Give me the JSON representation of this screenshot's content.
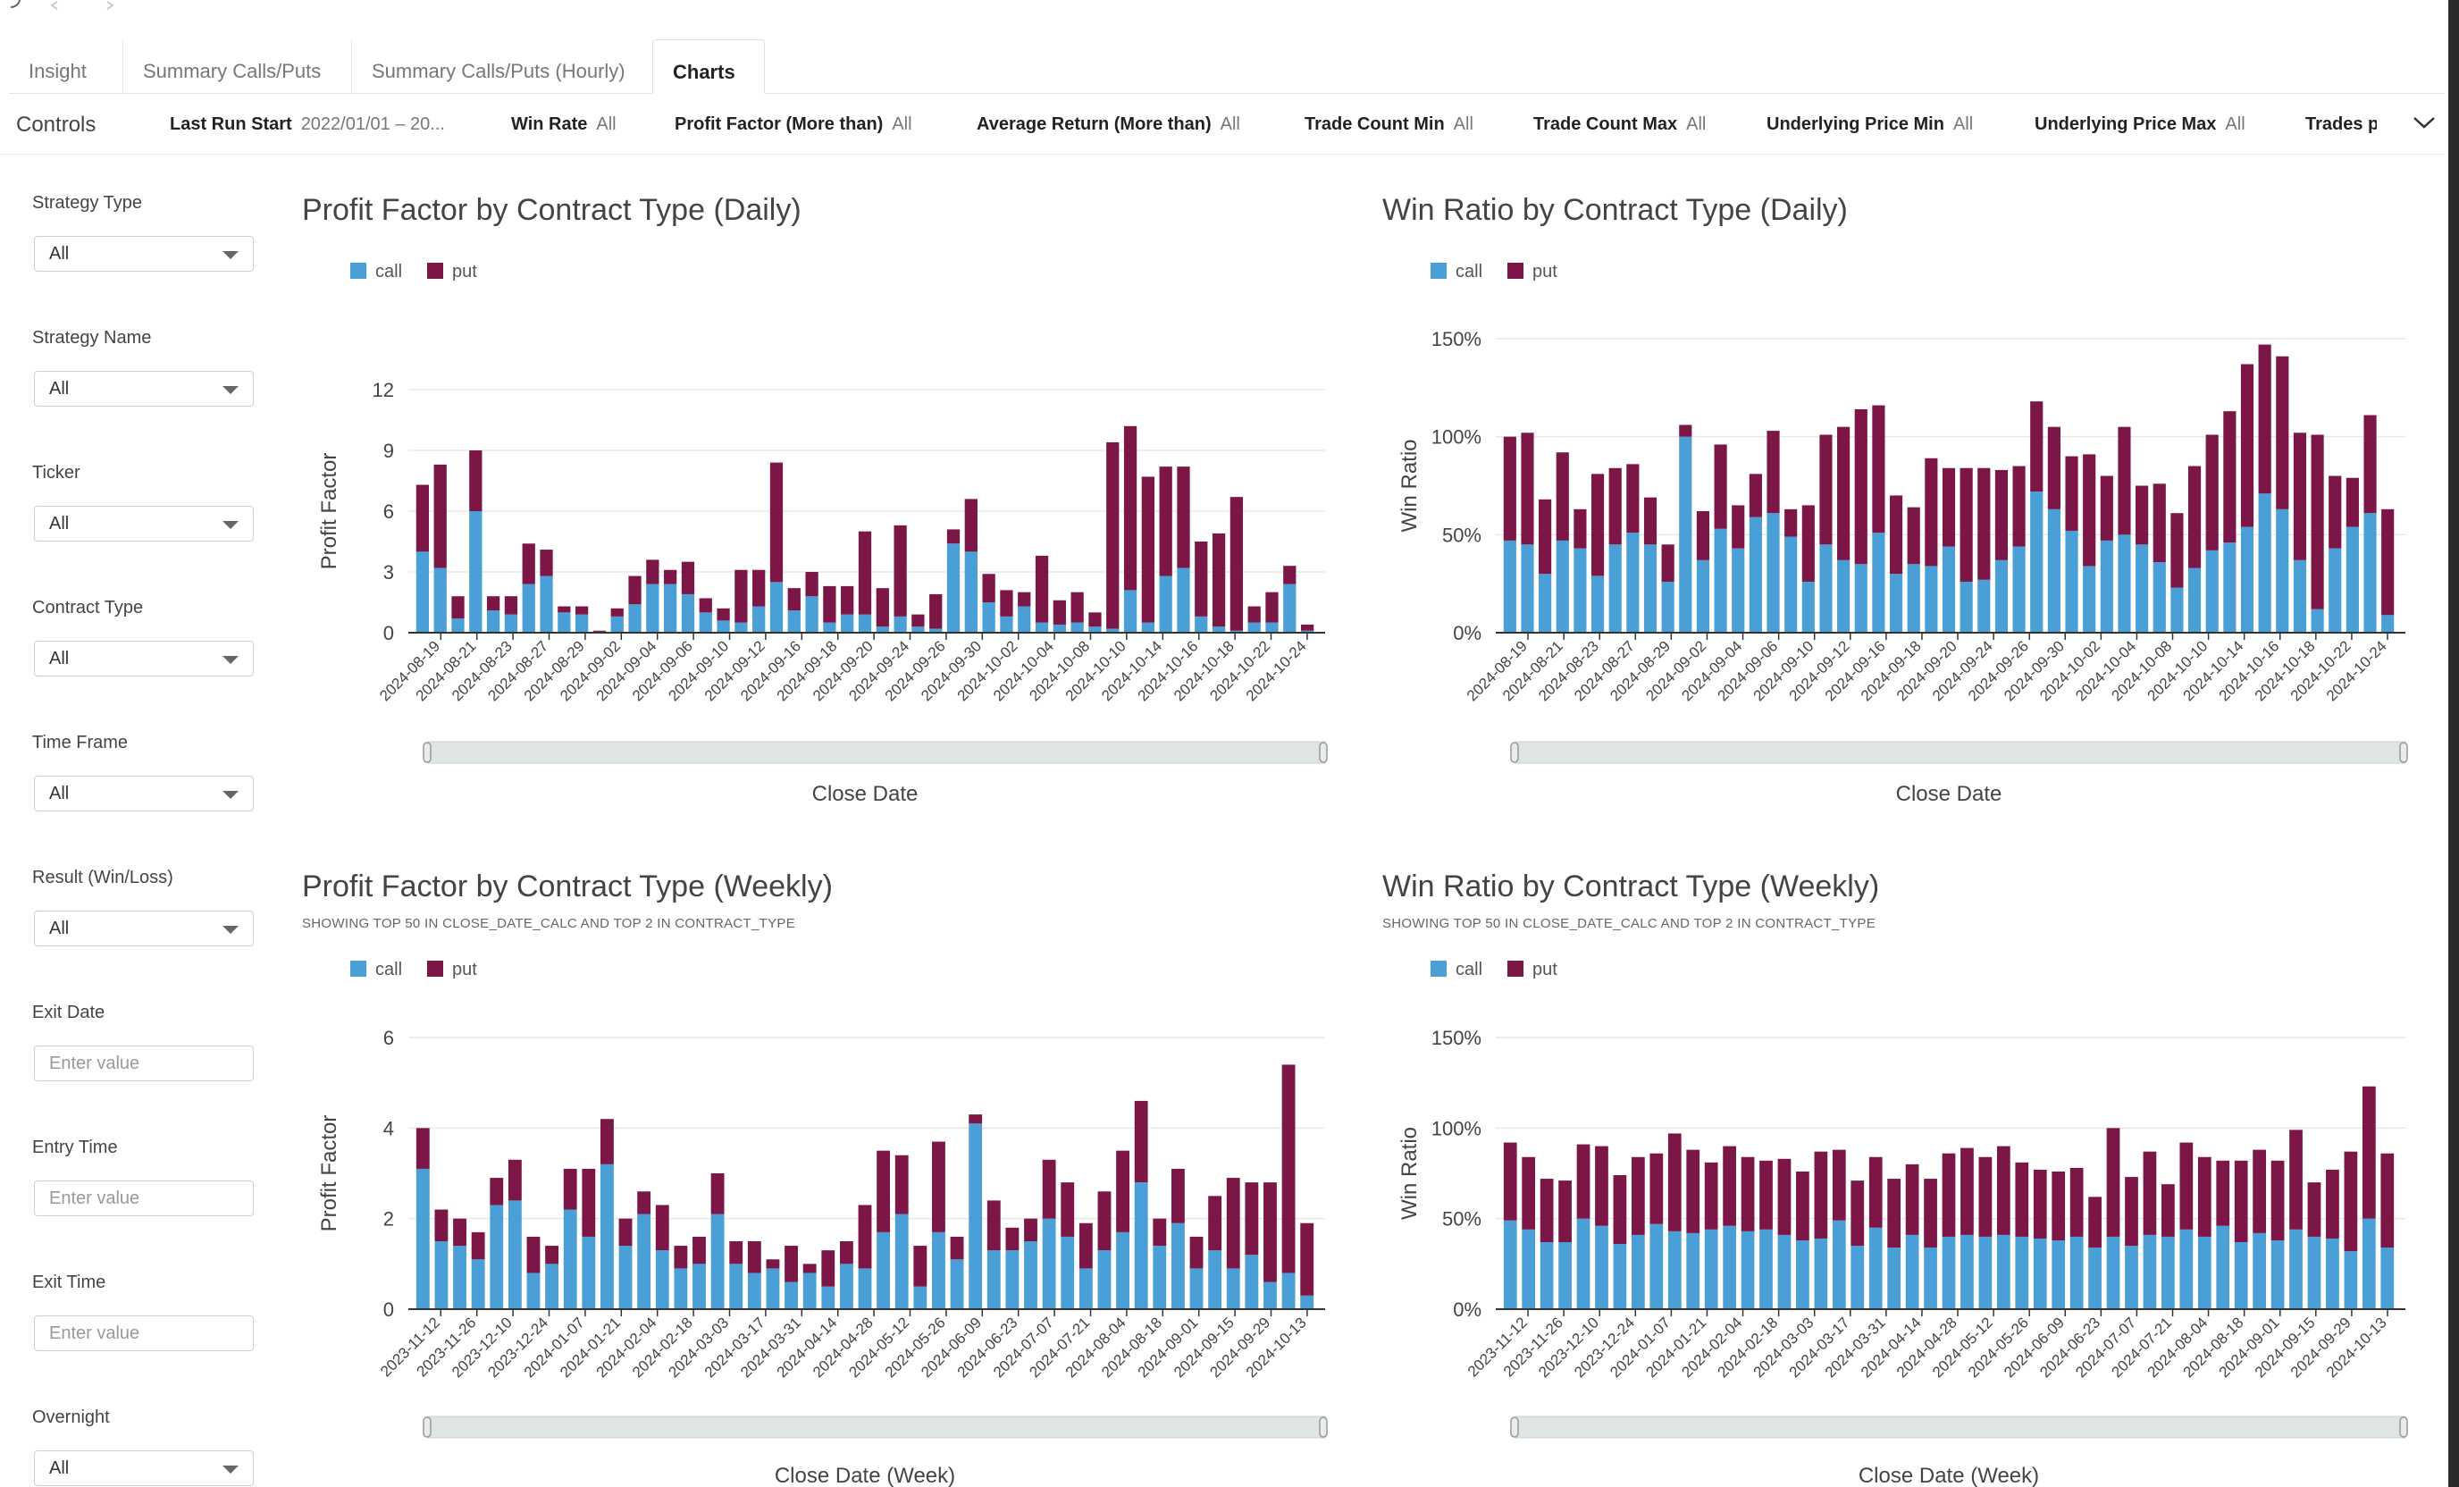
{
  "tabs": [
    {
      "label": "Insight",
      "active": false
    },
    {
      "label": "Summary Calls/Puts",
      "active": false
    },
    {
      "label": "Summary Calls/Puts (Hourly)",
      "active": false
    },
    {
      "label": "Charts",
      "active": true
    }
  ],
  "filter_bar": {
    "controls_label": "Controls",
    "filters": [
      {
        "name": "Last Run Start",
        "value": "2022/01/01 – 20..."
      },
      {
        "name": "Win Rate",
        "value": "All"
      },
      {
        "name": "Profit Factor (More than)",
        "value": "All"
      },
      {
        "name": "Average Return (More than)",
        "value": "All"
      },
      {
        "name": "Trade Count Min",
        "value": "All"
      },
      {
        "name": "Trade Count Max",
        "value": "All"
      },
      {
        "name": "Underlying Price Min",
        "value": "All"
      },
      {
        "name": "Underlying Price Max",
        "value": "All"
      },
      {
        "name": "Trades p",
        "value": ""
      }
    ]
  },
  "sidebar": {
    "fields": [
      {
        "label": "Strategy Type",
        "kind": "select",
        "value": "All"
      },
      {
        "label": "Strategy Name",
        "kind": "select",
        "value": "All"
      },
      {
        "label": "Ticker",
        "kind": "select",
        "value": "All"
      },
      {
        "label": "Contract Type",
        "kind": "select",
        "value": "All"
      },
      {
        "label": "Time Frame",
        "kind": "select",
        "value": "All"
      },
      {
        "label": "Result (Win/Loss)",
        "kind": "select",
        "value": "All"
      },
      {
        "label": "Exit Date",
        "kind": "input",
        "placeholder": "Enter value"
      },
      {
        "label": "Entry Time",
        "kind": "input",
        "placeholder": "Enter value"
      },
      {
        "label": "Exit Time",
        "kind": "input",
        "placeholder": "Enter value"
      },
      {
        "label": "Overnight",
        "kind": "select",
        "value": "All"
      }
    ]
  },
  "colors": {
    "call": "#4a9fd6",
    "put": "#7b1646",
    "grid": "#e8e8e8",
    "axis": "#333333",
    "slider": "#dfe6e2"
  },
  "chart_data": [
    {
      "id": "pf_daily",
      "type": "bar",
      "stacked": true,
      "title": "Profit Factor by Contract Type (Daily)",
      "subtitle": "",
      "xlabel": "Close Date",
      "ylabel": "Profit Factor",
      "ylim": [
        0,
        12
      ],
      "yticks": [
        0,
        3,
        6,
        9,
        12
      ],
      "y_format": "num",
      "legend": [
        "call",
        "put"
      ],
      "tick_labels": [
        "2024-08-19",
        "2024-08-21",
        "2024-08-23",
        "2024-08-27",
        "2024-08-29",
        "2024-09-02",
        "2024-09-04",
        "2024-09-06",
        "2024-09-10",
        "2024-09-12",
        "2024-09-16",
        "2024-09-18",
        "2024-09-20",
        "2024-09-24",
        "2024-09-26",
        "2024-09-30",
        "2024-10-02",
        "2024-10-04",
        "2024-10-08",
        "2024-10-10",
        "2024-10-14",
        "2024-10-16",
        "2024-10-18",
        "2024-10-22",
        "2024-10-24"
      ],
      "series": [
        {
          "name": "call",
          "values": [
            4.0,
            3.2,
            0.7,
            6.0,
            1.1,
            0.9,
            2.4,
            2.8,
            1.0,
            0.9,
            0.05,
            0.8,
            1.4,
            2.4,
            2.4,
            1.9,
            1.0,
            0.6,
            0.5,
            1.3,
            2.5,
            1.1,
            1.8,
            0.5,
            0.9,
            0.9,
            0.3,
            0.8,
            0.3,
            0.2,
            4.4,
            4.0,
            1.5,
            0.8,
            1.3,
            0.5,
            0.4,
            0.5,
            0.3,
            0.2,
            2.1,
            0.5,
            2.8,
            3.2,
            0.8,
            0.3,
            0.1,
            0.5,
            0.5,
            2.4,
            0.1
          ]
        },
        {
          "name": "put",
          "values": [
            3.3,
            5.1,
            1.1,
            3.0,
            0.7,
            0.9,
            2.0,
            1.3,
            0.3,
            0.4,
            0.05,
            0.4,
            1.4,
            1.2,
            0.7,
            1.6,
            0.7,
            0.6,
            2.6,
            1.8,
            5.9,
            1.1,
            1.2,
            1.8,
            1.4,
            4.1,
            1.9,
            4.5,
            0.6,
            1.7,
            0.7,
            2.6,
            1.4,
            1.3,
            0.7,
            3.3,
            1.2,
            1.5,
            0.7,
            9.2,
            8.1,
            7.2,
            5.4,
            5.0,
            3.7,
            4.6,
            6.6,
            0.8,
            1.5,
            0.9,
            0.3
          ]
        }
      ]
    },
    {
      "id": "wr_daily",
      "type": "bar",
      "stacked": true,
      "title": "Win Ratio by Contract Type (Daily)",
      "subtitle": "",
      "xlabel": "Close Date",
      "ylabel": "Win Ratio",
      "ylim": [
        0,
        150
      ],
      "yticks": [
        0,
        50,
        100,
        150
      ],
      "y_format": "pct",
      "legend": [
        "call",
        "put"
      ],
      "tick_labels": [
        "2024-08-19",
        "2024-08-21",
        "2024-08-23",
        "2024-08-27",
        "2024-08-29",
        "2024-09-02",
        "2024-09-04",
        "2024-09-06",
        "2024-09-10",
        "2024-09-12",
        "2024-09-16",
        "2024-09-18",
        "2024-09-20",
        "2024-09-24",
        "2024-09-26",
        "2024-09-30",
        "2024-10-02",
        "2024-10-04",
        "2024-10-08",
        "2024-10-10",
        "2024-10-14",
        "2024-10-16",
        "2024-10-18",
        "2024-10-22",
        "2024-10-24"
      ],
      "series": [
        {
          "name": "call",
          "values": [
            47,
            45,
            30,
            47,
            43,
            29,
            45,
            51,
            45,
            26,
            100,
            37,
            53,
            43,
            59,
            61,
            49,
            26,
            45,
            37,
            35,
            51,
            30,
            35,
            34,
            44,
            26,
            27,
            37,
            44,
            72,
            63,
            52,
            34,
            47,
            50,
            45,
            36,
            23,
            33,
            42,
            46,
            54,
            71,
            63,
            37,
            12,
            43,
            54,
            61,
            9
          ]
        },
        {
          "name": "put",
          "values": [
            53,
            57,
            38,
            45,
            20,
            52,
            39,
            35,
            24,
            19,
            6,
            25,
            43,
            22,
            22,
            42,
            14,
            39,
            56,
            68,
            79,
            65,
            40,
            29,
            55,
            40,
            58,
            57,
            46,
            41,
            46,
            42,
            38,
            57,
            33,
            55,
            30,
            40,
            38,
            52,
            59,
            67,
            83,
            76,
            78,
            65,
            89,
            37,
            25,
            50,
            54
          ]
        }
      ]
    },
    {
      "id": "pf_weekly",
      "type": "bar",
      "stacked": true,
      "title": "Profit Factor by Contract Type (Weekly)",
      "subtitle": "SHOWING TOP 50 IN CLOSE_DATE_CALC AND TOP 2 IN CONTRACT_TYPE",
      "xlabel": "Close Date (Week)",
      "ylabel": "Profit Factor",
      "ylim": [
        0,
        6
      ],
      "yticks": [
        0,
        2,
        4,
        6
      ],
      "y_format": "num",
      "legend": [
        "call",
        "put"
      ],
      "tick_labels": [
        "2023-11-12",
        "2023-11-26",
        "2023-12-10",
        "2023-12-24",
        "2024-01-07",
        "2024-01-21",
        "2024-02-04",
        "2024-02-18",
        "2024-03-03",
        "2024-03-17",
        "2024-03-31",
        "2024-04-14",
        "2024-04-28",
        "2024-05-12",
        "2024-05-26",
        "2024-06-09",
        "2024-06-23",
        "2024-07-07",
        "2024-07-21",
        "2024-08-04",
        "2024-08-18",
        "2024-09-01",
        "2024-09-15",
        "2024-09-29",
        "2024-10-13"
      ],
      "series": [
        {
          "name": "call",
          "values": [
            3.1,
            1.5,
            1.4,
            1.1,
            2.3,
            2.4,
            0.8,
            1.0,
            2.2,
            1.6,
            3.2,
            1.4,
            2.1,
            1.3,
            0.9,
            1.0,
            2.1,
            1.0,
            0.8,
            0.9,
            0.6,
            0.8,
            0.5,
            1.0,
            0.9,
            1.7,
            2.1,
            0.5,
            1.7,
            1.1,
            4.1,
            1.3,
            1.3,
            1.5,
            2.0,
            1.6,
            0.9,
            1.3,
            1.7,
            2.8,
            1.4,
            1.9,
            0.9,
            1.3,
            0.9,
            1.2,
            0.6,
            0.8,
            0.3
          ]
        },
        {
          "name": "put",
          "values": [
            0.9,
            0.7,
            0.6,
            0.6,
            0.6,
            0.9,
            0.8,
            0.4,
            0.9,
            1.5,
            1.0,
            0.6,
            0.5,
            1.0,
            0.5,
            0.6,
            0.9,
            0.5,
            0.7,
            0.2,
            0.8,
            0.2,
            0.8,
            0.5,
            1.4,
            1.8,
            1.3,
            0.9,
            2.0,
            0.5,
            0.2,
            1.1,
            0.5,
            0.5,
            1.3,
            1.2,
            1.0,
            1.3,
            1.8,
            1.8,
            0.6,
            1.2,
            0.7,
            1.2,
            2.0,
            1.6,
            2.2,
            4.6,
            1.6
          ]
        }
      ]
    },
    {
      "id": "wr_weekly",
      "type": "bar",
      "stacked": true,
      "title": "Win Ratio by Contract Type (Weekly)",
      "subtitle": "SHOWING TOP 50 IN CLOSE_DATE_CALC AND TOP 2 IN CONTRACT_TYPE",
      "xlabel": "Close Date (Week)",
      "ylabel": "Win Ratio",
      "ylim": [
        0,
        150
      ],
      "yticks": [
        0,
        50,
        100,
        150
      ],
      "y_format": "pct",
      "legend": [
        "call",
        "put"
      ],
      "tick_labels": [
        "2023-11-12",
        "2023-11-26",
        "2023-12-10",
        "2023-12-24",
        "2024-01-07",
        "2024-01-21",
        "2024-02-04",
        "2024-02-18",
        "2024-03-03",
        "2024-03-17",
        "2024-03-31",
        "2024-04-14",
        "2024-04-28",
        "2024-05-12",
        "2024-05-26",
        "2024-06-09",
        "2024-06-23",
        "2024-07-07",
        "2024-07-21",
        "2024-08-04",
        "2024-08-18",
        "2024-09-01",
        "2024-09-15",
        "2024-09-29",
        "2024-10-13"
      ],
      "series": [
        {
          "name": "call",
          "values": [
            49,
            44,
            37,
            37,
            50,
            46,
            36,
            41,
            47,
            43,
            42,
            44,
            46,
            43,
            44,
            41,
            38,
            39,
            49,
            35,
            45,
            34,
            41,
            34,
            40,
            41,
            40,
            41,
            40,
            39,
            38,
            40,
            34,
            40,
            35,
            41,
            40,
            44,
            40,
            46,
            37,
            42,
            38,
            44,
            40,
            39,
            32,
            50,
            34
          ]
        },
        {
          "name": "put",
          "values": [
            43,
            40,
            35,
            34,
            41,
            44,
            38,
            43,
            39,
            54,
            46,
            37,
            44,
            41,
            38,
            42,
            38,
            48,
            39,
            36,
            39,
            38,
            39,
            38,
            46,
            48,
            44,
            49,
            41,
            38,
            38,
            38,
            28,
            60,
            38,
            46,
            29,
            48,
            44,
            36,
            45,
            46,
            44,
            55,
            30,
            38,
            55,
            73,
            52
          ]
        }
      ]
    }
  ]
}
